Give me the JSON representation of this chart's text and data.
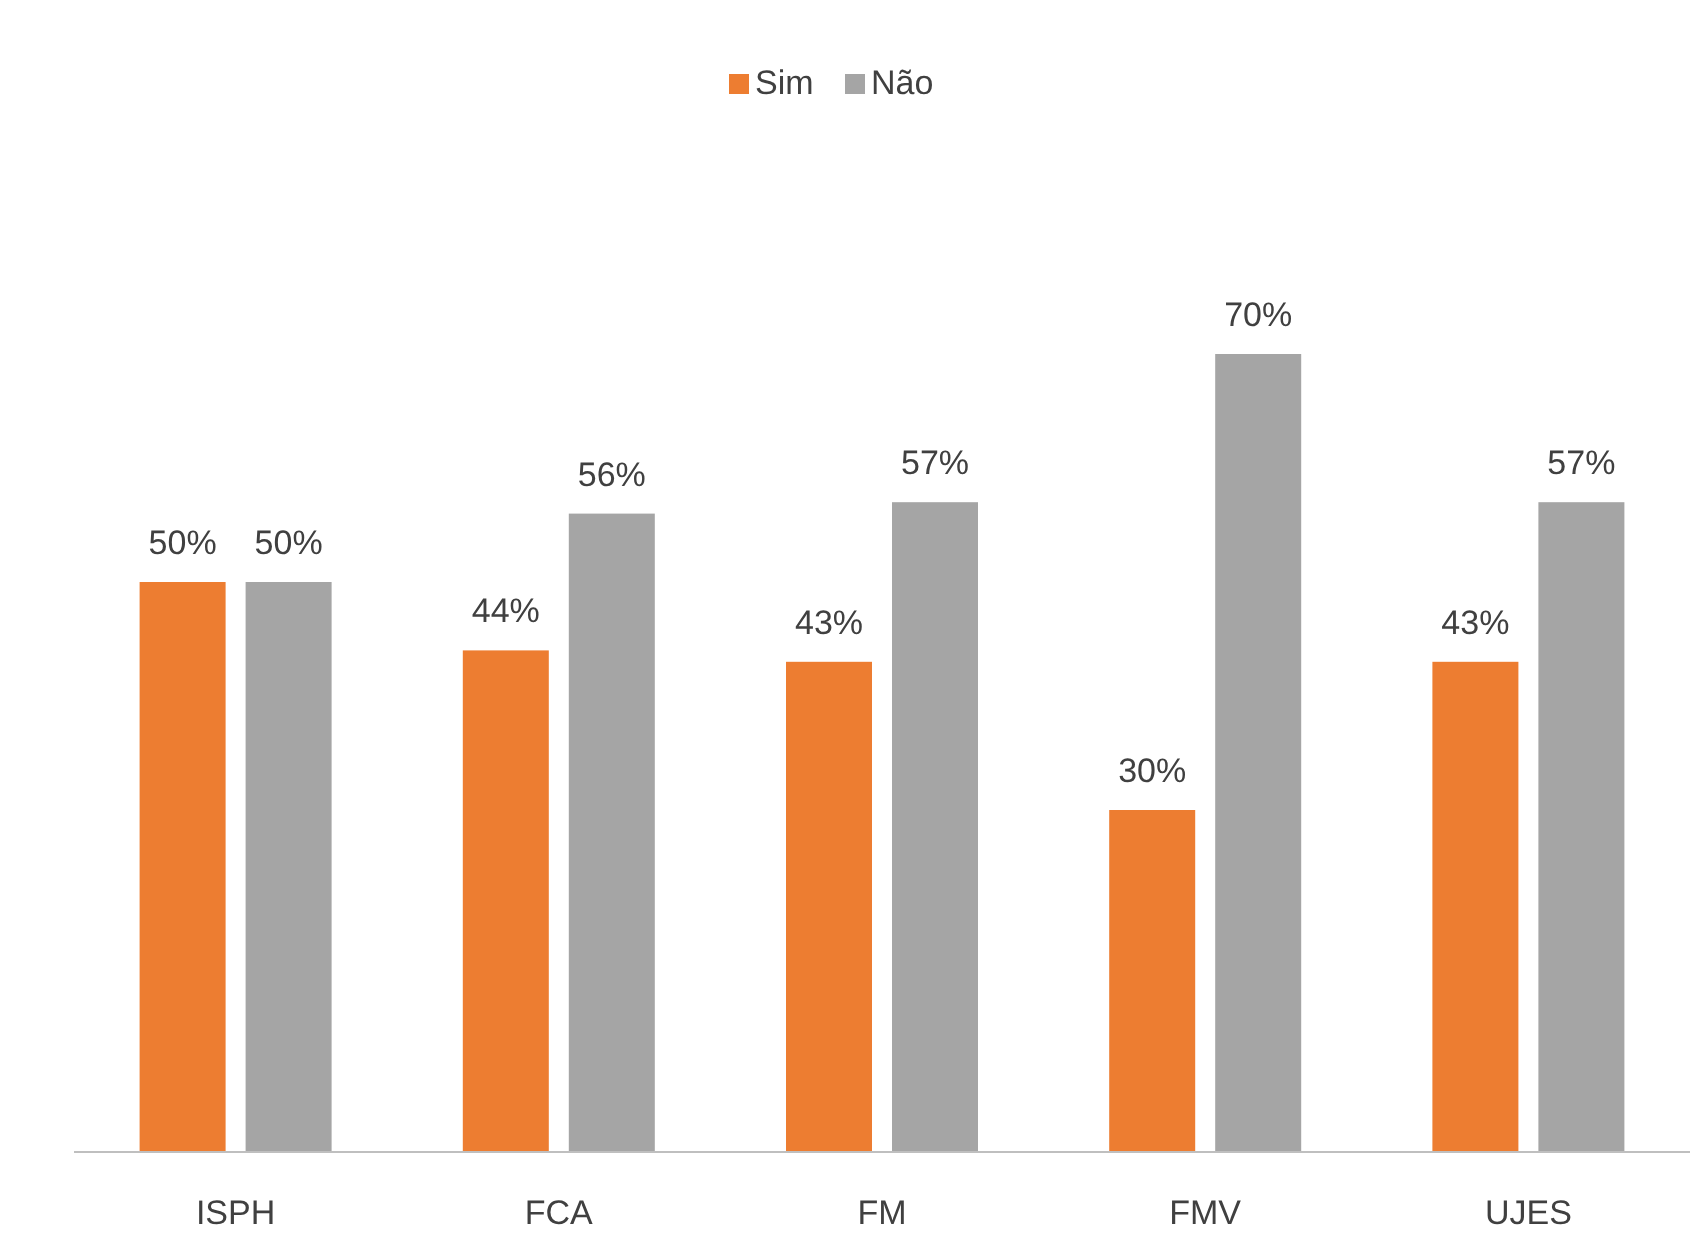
{
  "chart_data": {
    "type": "bar",
    "categories": [
      "ISPH",
      "FCA",
      "FM",
      "FMV",
      "UJES"
    ],
    "series": [
      {
        "name": "Sim",
        "color": "#ed7d31",
        "values": [
          50,
          44,
          43,
          30,
          43
        ],
        "value_labels": [
          "50%",
          "44%",
          "43%",
          "30%",
          "43%"
        ]
      },
      {
        "name": "Não",
        "color": "#a5a5a5",
        "values": [
          50,
          56,
          57,
          70,
          57
        ],
        "value_labels": [
          "50%",
          "56%",
          "57%",
          "70%",
          "57%"
        ]
      }
    ],
    "legend": "top",
    "grid": false
  }
}
